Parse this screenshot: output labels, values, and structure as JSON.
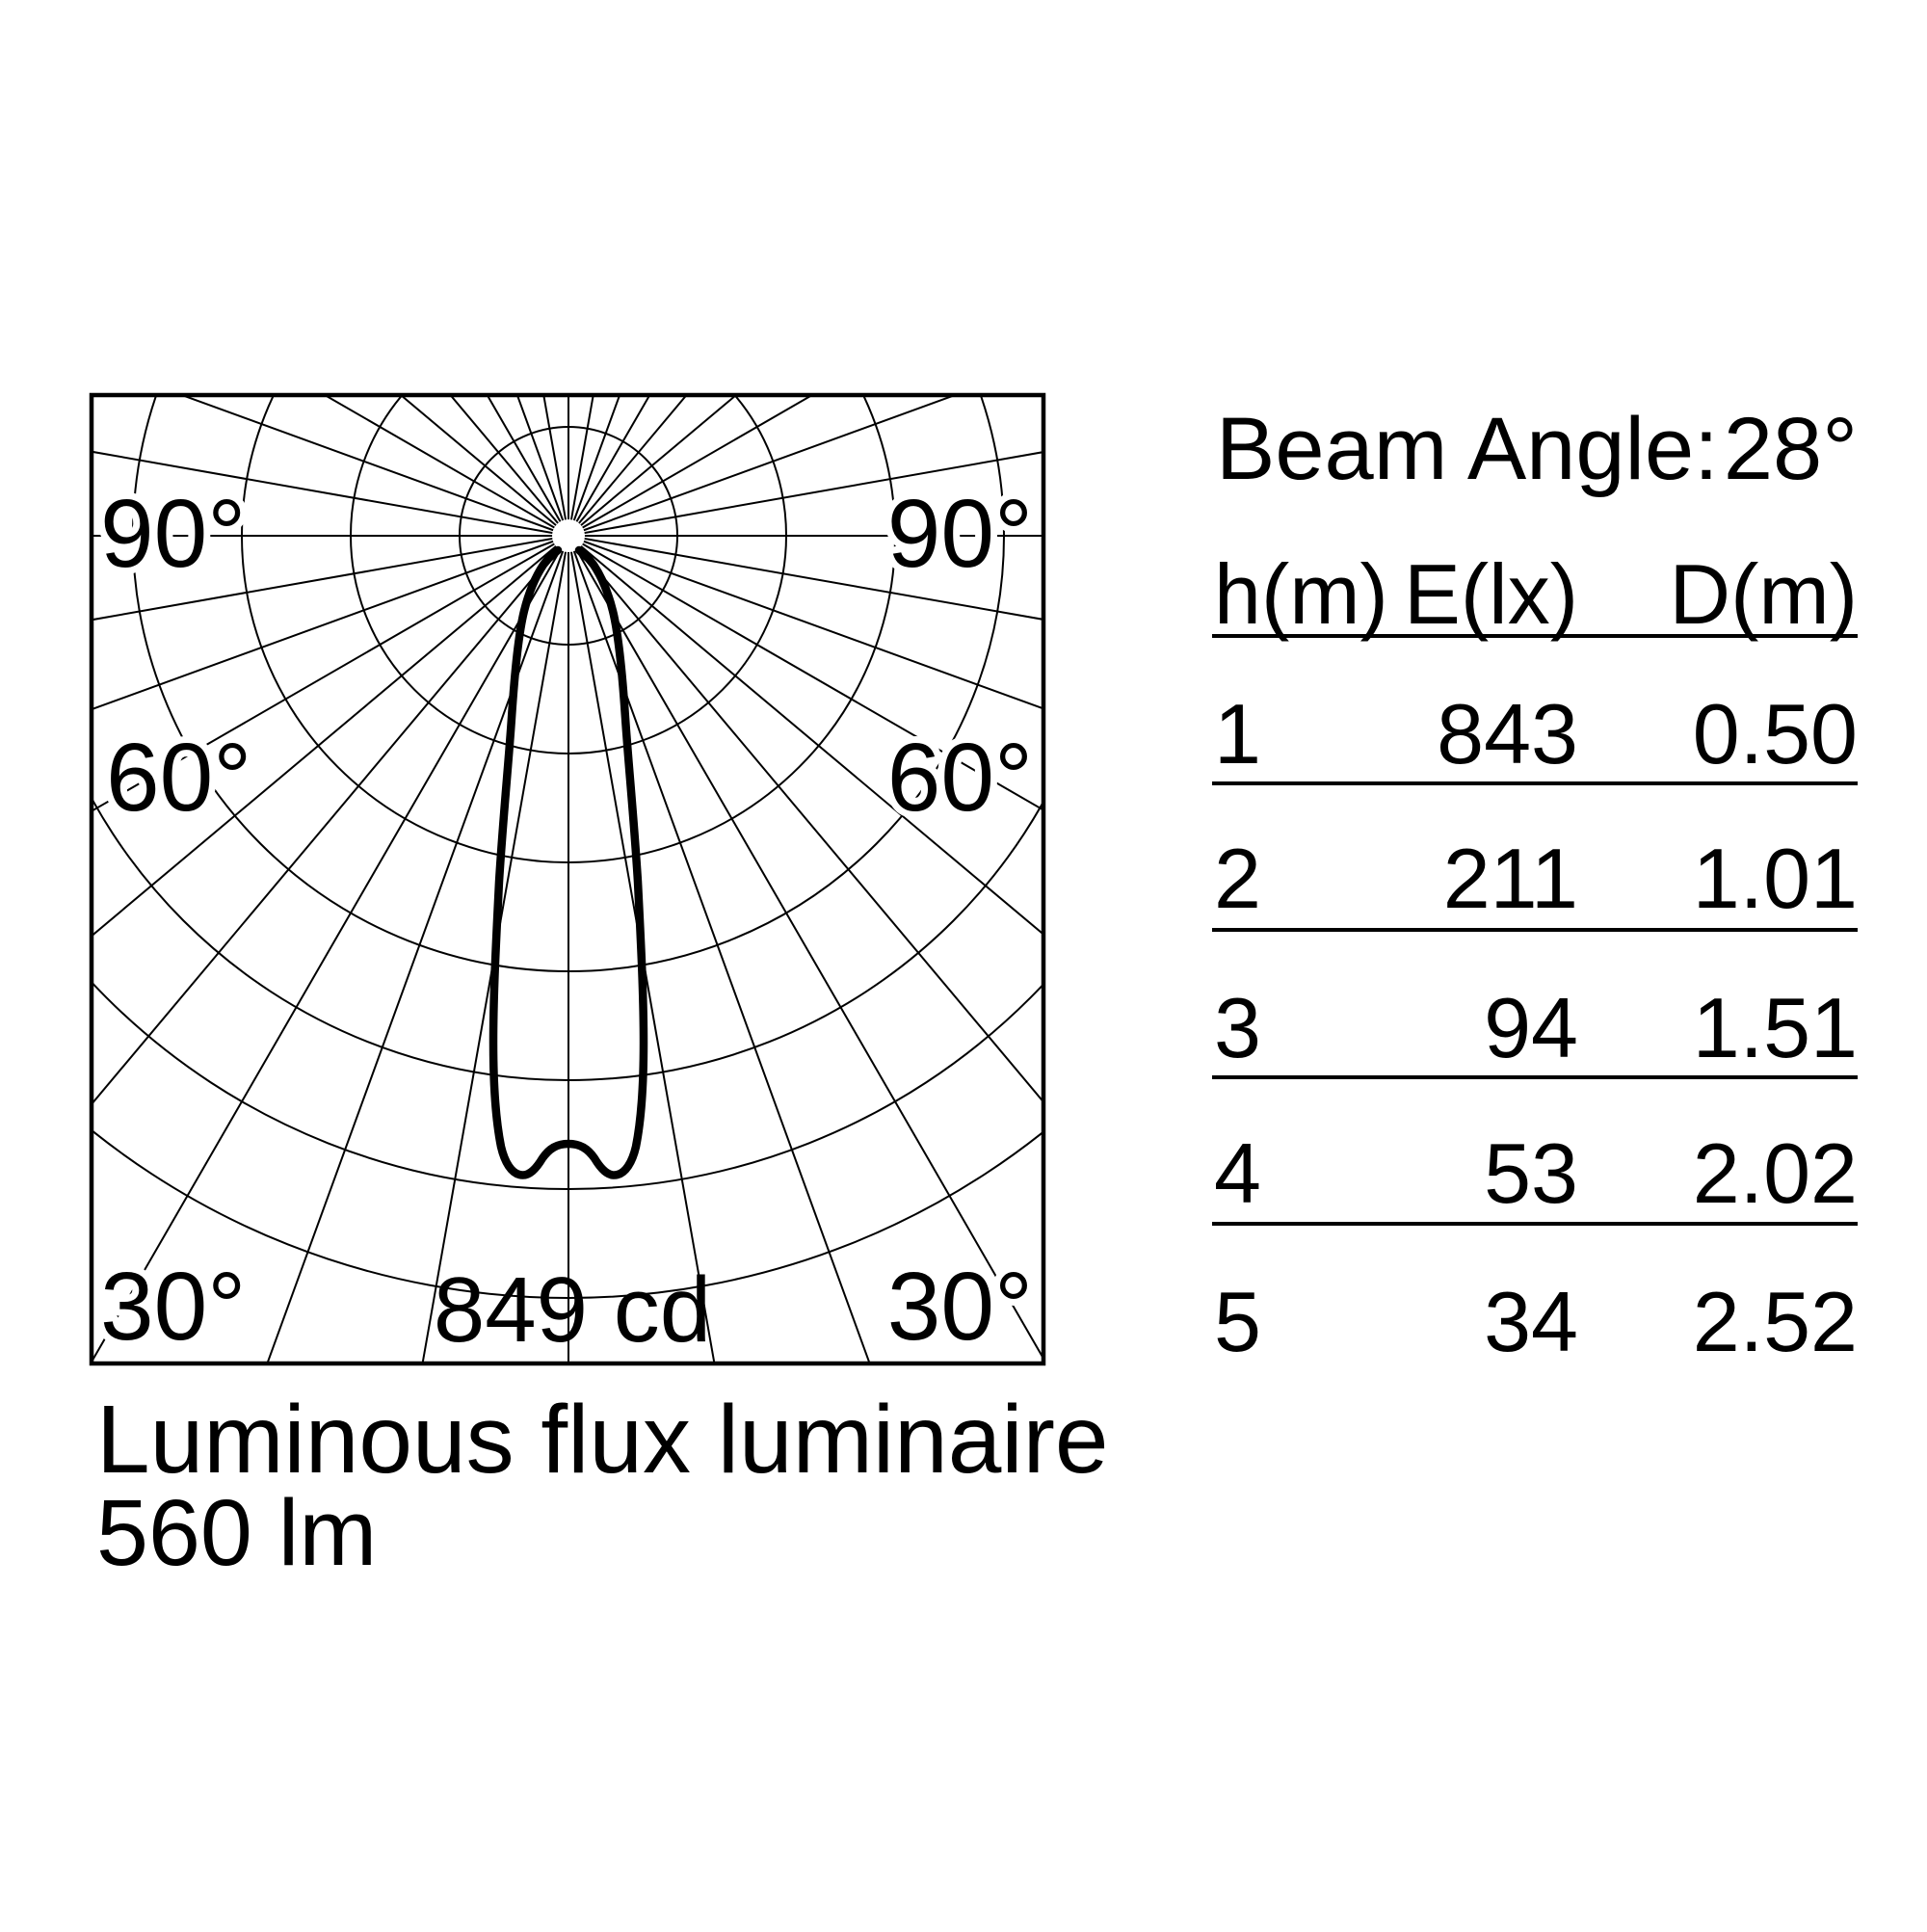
{
  "chart_data": {
    "type": "polar_luminous_intensity",
    "title": "Luminous flux luminaire",
    "luminous_flux": "560 lm",
    "luminous_flux_lm": 560,
    "max_intensity_label": "849 cd",
    "max_intensity_cd": 849,
    "angle_tick_step_deg": 10,
    "angle_labels_left": [
      "90°",
      "60°",
      "30°"
    ],
    "angle_labels_right": [
      "90°",
      "60°",
      "30°"
    ],
    "ring_count": 7,
    "ring_step_cd_estimate": 141.5,
    "grid": "polar, radial lines every 10 degrees, 7 concentric rings, clipped to square frame",
    "curve_points_estimate_deg_cd": [
      [
        -90,
        0
      ],
      [
        -30,
        10
      ],
      [
        -20,
        80
      ],
      [
        -16,
        250
      ],
      [
        -14,
        370
      ],
      [
        -12,
        440
      ],
      [
        -10,
        540
      ],
      [
        -8,
        700
      ],
      [
        -6,
        835
      ],
      [
        -4,
        849
      ],
      [
        -2,
        815
      ],
      [
        0,
        800
      ],
      [
        2,
        815
      ],
      [
        4,
        849
      ],
      [
        6,
        835
      ],
      [
        8,
        700
      ],
      [
        10,
        540
      ],
      [
        12,
        440
      ],
      [
        14,
        370
      ],
      [
        16,
        250
      ],
      [
        20,
        80
      ],
      [
        30,
        10
      ],
      [
        90,
        0
      ]
    ],
    "curve_shape_note": "narrow downward beam, slight batwing dip on axis near maximum depth"
  },
  "polar": {
    "label_90": "90°",
    "label_60": "60°",
    "label_30": "30°",
    "max_label": "849 cd"
  },
  "footer": {
    "title": "Luminous flux luminaire",
    "lumen": "560 lm"
  },
  "beam": {
    "label": "Beam Angle:",
    "value": "28°",
    "value_deg": 28
  },
  "table": {
    "columns": [
      "h(m)",
      "E(lx)",
      "D(m)"
    ],
    "rows": [
      [
        "1",
        "843",
        "0.50"
      ],
      [
        "2",
        "211",
        "1.01"
      ],
      [
        "3",
        "94",
        "1.51"
      ],
      [
        "4",
        "53",
        "2.02"
      ],
      [
        "5",
        "34",
        "2.52"
      ]
    ]
  }
}
